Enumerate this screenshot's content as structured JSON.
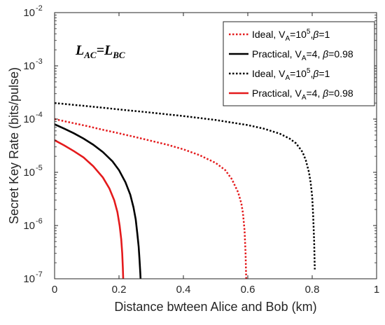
{
  "chart_data": {
    "type": "line",
    "title": "",
    "xlabel": "Distance bwteen Alice and Bob (km)",
    "ylabel": "Secret Key Rate (bits/pulse)",
    "xlim": [
      0,
      1
    ],
    "ylim": [
      1e-07,
      0.01
    ],
    "yscale": "log",
    "grid": false,
    "legend_position": "top-right",
    "x_ticks": [
      "0",
      "0.2",
      "0.4",
      "0.6",
      "0.8",
      "1"
    ],
    "y_ticks": [
      {
        "base": "10",
        "exp": "-7"
      },
      {
        "base": "10",
        "exp": "-6"
      },
      {
        "base": "10",
        "exp": "-5"
      },
      {
        "base": "10",
        "exp": "-4"
      },
      {
        "base": "10",
        "exp": "-3"
      },
      {
        "base": "10",
        "exp": "-2"
      }
    ],
    "annotation": {
      "left": "L",
      "left_sub": "AC",
      "eq": "=",
      "right": "L",
      "right_sub": "BC"
    },
    "series": [
      {
        "name": "Ideal, V_A=10^5, β=1",
        "legend": {
          "pre": "Ideal, V",
          "sub": "A",
          "mid": "=10",
          "sup": "5",
          "post1": ",",
          "beta": "β",
          "post2": "=1"
        },
        "color": "#e41a1c",
        "dash": "dotted",
        "x": [
          0,
          0.05,
          0.1,
          0.15,
          0.2,
          0.25,
          0.3,
          0.35,
          0.4,
          0.45,
          0.5,
          0.53,
          0.55,
          0.57,
          0.58,
          0.585,
          0.59,
          0.593,
          0.595
        ],
        "y": [
          0.0001,
          8.6e-05,
          7.4e-05,
          6.3e-05,
          5.4e-05,
          4.6e-05,
          3.9e-05,
          3.3e-05,
          2.7e-05,
          2.1e-05,
          1.5e-05,
          1.1e-05,
          7.5e-06,
          4.2e-06,
          2.6e-06,
          1.7e-06,
          8e-07,
          3e-07,
          1e-07
        ]
      },
      {
        "name": "Practical, V_A=4, β=0.98",
        "legend": {
          "pre": "Practical, V",
          "sub": "A",
          "mid": "=4, ",
          "sup": "",
          "post1": "",
          "beta": "β",
          "post2": "=0.98"
        },
        "color": "#000000",
        "dash": "solid",
        "x": [
          0,
          0.03,
          0.06,
          0.09,
          0.12,
          0.15,
          0.18,
          0.2,
          0.22,
          0.235,
          0.245,
          0.252,
          0.257,
          0.261,
          0.264,
          0.266,
          0.267
        ],
        "y": [
          8e-05,
          6.6e-05,
          5.4e-05,
          4.3e-05,
          3.3e-05,
          2.4e-05,
          1.6e-05,
          1.1e-05,
          6.5e-06,
          3.8e-06,
          2.2e-06,
          1.3e-06,
          7e-07,
          4e-07,
          2.2e-07,
          1.3e-07,
          1e-07
        ]
      },
      {
        "name": "Ideal, V_A=10^5, β=1",
        "legend": {
          "pre": "Ideal, V",
          "sub": "A",
          "mid": "=10",
          "sup": "5",
          "post1": ",",
          "beta": "β",
          "post2": "=1"
        },
        "color": "#000000",
        "dash": "dotted",
        "x": [
          0,
          0.1,
          0.2,
          0.3,
          0.4,
          0.5,
          0.6,
          0.65,
          0.7,
          0.73,
          0.75,
          0.77,
          0.78,
          0.79,
          0.795,
          0.8,
          0.803,
          0.806,
          0.808
        ],
        "y": [
          0.0002,
          0.000175,
          0.000152,
          0.000132,
          0.000114,
          9.6e-05,
          7.7e-05,
          6.6e-05,
          5.3e-05,
          4.3e-05,
          3.5e-05,
          2.4e-05,
          1.7e-05,
          1e-05,
          6.5e-06,
          3.5e-06,
          1.5e-06,
          5e-07,
          1.5e-07
        ]
      },
      {
        "name": "Practical, V_A=4, β=0.98",
        "legend": {
          "pre": "Practical, V",
          "sub": "A",
          "mid": "=4, ",
          "sup": "",
          "post1": "",
          "beta": "β",
          "post2": "=0.98"
        },
        "color": "#e41a1c",
        "dash": "solid",
        "x": [
          0,
          0.03,
          0.06,
          0.09,
          0.12,
          0.15,
          0.17,
          0.185,
          0.195,
          0.202,
          0.207,
          0.21,
          0.212,
          0.213
        ],
        "y": [
          4e-05,
          3.2e-05,
          2.5e-05,
          1.9e-05,
          1.3e-05,
          8e-06,
          5e-06,
          3e-06,
          1.8e-06,
          1e-06,
          5.5e-07,
          3e-07,
          1.6e-07,
          1e-07
        ]
      }
    ]
  }
}
